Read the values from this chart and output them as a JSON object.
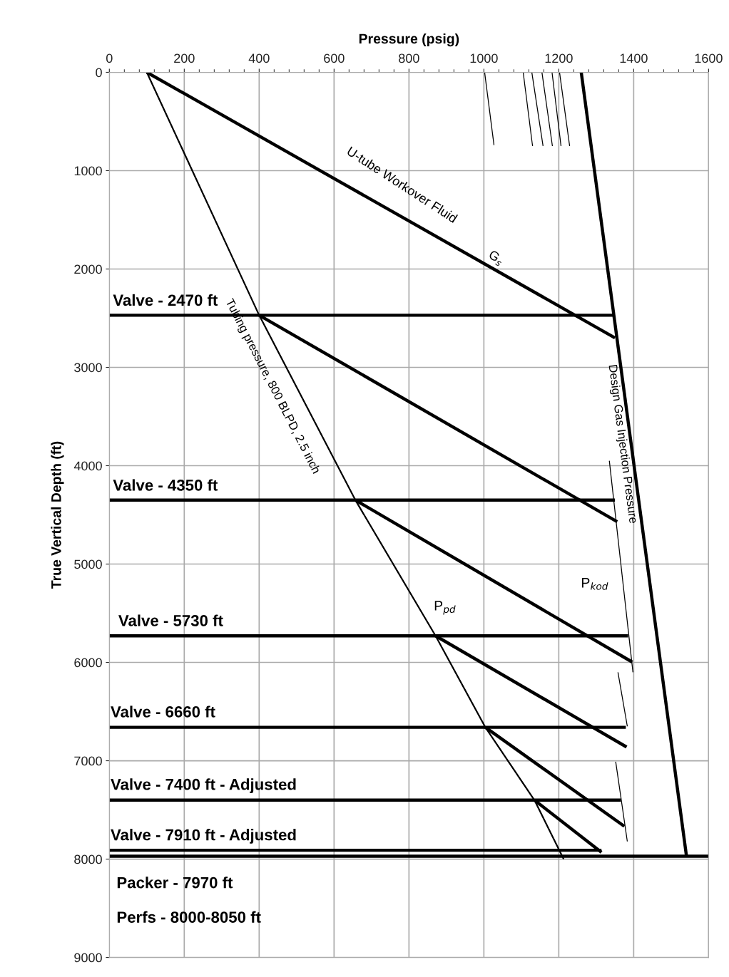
{
  "chart_data": {
    "type": "line",
    "xlabel": "Pressure (psig)",
    "ylabel": "True Vertical Depth (ft)",
    "xlim": [
      0,
      1600
    ],
    "xticks": [
      0,
      200,
      400,
      600,
      800,
      1000,
      1200,
      1400,
      1600
    ],
    "ylim": [
      9000,
      0
    ],
    "yticks": [
      0,
      1000,
      2000,
      3000,
      4000,
      5000,
      6000,
      7000,
      8000,
      9000
    ],
    "grid": true,
    "marker": "none",
    "line_style": "solid",
    "series": [
      {
        "color": "#000000",
        "x": [
          100,
          400,
          657,
          871,
          1004,
          1135,
          1213
        ],
        "values": [
          0,
          2470,
          4350,
          5730,
          6660,
          7400,
          8000
        ]
      },
      {
        "color": "#000000",
        "x": [
          1260,
          1541
        ],
        "values": [
          0,
          7970
        ]
      },
      {
        "color": "#000000",
        "x": [
          100,
          1350
        ],
        "values": [
          0,
          2700
        ]
      },
      {
        "color": "#000000",
        "x": [
          400,
          1356
        ],
        "values": [
          2470,
          4570
        ]
      },
      {
        "color": "#000000",
        "x": [
          657,
          1396
        ],
        "values": [
          4350,
          5996
        ]
      },
      {
        "color": "#000000",
        "x": [
          871,
          1381
        ],
        "values": [
          5730,
          6860
        ]
      },
      {
        "color": "#000000",
        "x": [
          1004,
          1375
        ],
        "values": [
          6660,
          7666
        ]
      },
      {
        "color": "#000000",
        "x": [
          1135,
          1314
        ],
        "values": [
          7400,
          7930
        ]
      },
      {
        "color": "#000000",
        "x": [
          0,
          1347
        ],
        "values": [
          2470,
          2470
        ]
      },
      {
        "color": "#000000",
        "x": [
          0,
          1350
        ],
        "values": [
          4350,
          4350
        ]
      },
      {
        "color": "#000000",
        "x": [
          0,
          1385
        ],
        "values": [
          5730,
          5730
        ]
      },
      {
        "color": "#000000",
        "x": [
          0,
          1379
        ],
        "values": [
          6660,
          6660
        ]
      },
      {
        "color": "#000000",
        "x": [
          0,
          1366
        ],
        "values": [
          7400,
          7400
        ]
      },
      {
        "color": "#000000",
        "x": [
          0,
          1314
        ],
        "values": [
          7910,
          7910
        ]
      },
      {
        "color": "#000000",
        "x": [
          0,
          1600
        ],
        "values": [
          7970,
          7970
        ]
      },
      {
        "color": "#000000",
        "x": [
          1335,
          1398
        ],
        "values": [
          3950,
          6100
        ]
      },
      {
        "color": "#000000",
        "x": [
          1358,
          1383
        ],
        "values": [
          6100,
          6650
        ]
      },
      {
        "color": "#000000",
        "x": [
          1352,
          1383
        ],
        "values": [
          7010,
          7820
        ]
      },
      {
        "color": "#000000",
        "x": [
          1002,
          1027
        ],
        "values": [
          0,
          740
        ]
      },
      {
        "color": "#000000",
        "x": [
          1105,
          1130
        ],
        "values": [
          0,
          750
        ]
      },
      {
        "color": "#000000",
        "x": [
          1128,
          1158
        ],
        "values": [
          0,
          750
        ]
      },
      {
        "color": "#000000",
        "x": [
          1155,
          1183
        ],
        "values": [
          0,
          750
        ]
      },
      {
        "color": "#000000",
        "x": [
          1182,
          1206
        ],
        "values": [
          0,
          750
        ]
      },
      {
        "color": "#000000",
        "x": [
          1202,
          1229
        ],
        "values": [
          0,
          750
        ]
      }
    ],
    "annotations": [
      "U-tube Workover Fluid",
      "G$_{s}$",
      "Tubing pressure, 800 BLPD, 2.5 inch",
      "P$_{pd}$",
      "Design Gas Injection Pressure",
      "P$_{kod}$",
      "Valve - 2470 ft",
      "Valve - 4350 ft",
      "Valve - 5730 ft",
      "Valve - 6660 ft",
      "Valve - 7400 ft - Adjusted",
      "Valve - 7910 ft - Adjusted",
      "Packer - 7970 ft",
      "Perfs - 8000-8050 ft"
    ]
  }
}
